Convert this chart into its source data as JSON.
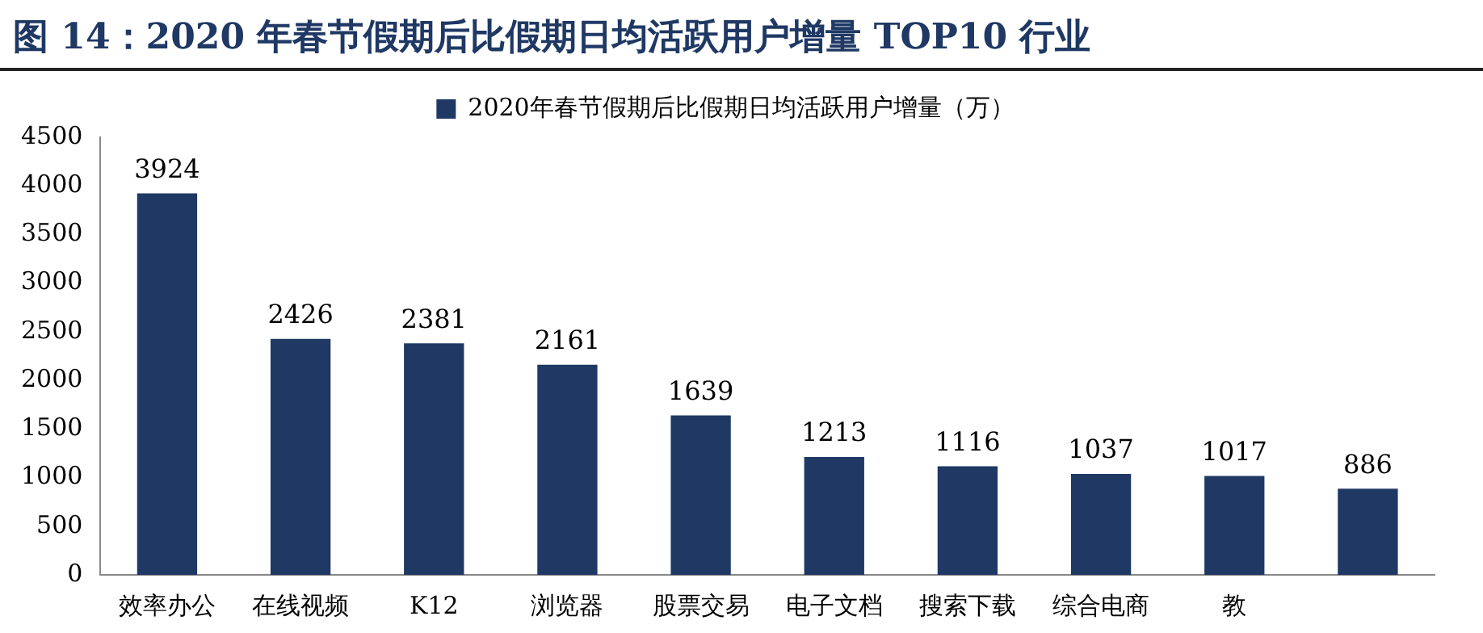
{
  "chart_data": {
    "type": "bar",
    "title": "图 14：2020 年春节假期后比假期日均活跃用户增量 TOP10 行业",
    "categories": [
      "效率办公",
      "在线视频",
      "K12",
      "浏览器",
      "股票交易",
      "电子文档",
      "搜索下载",
      "综合电商",
      "教",
      null
    ],
    "series": [
      {
        "name": "2020年春节假期后比假期日均活跃用户增量（万）",
        "color": "#1f3864",
        "values": [
          3924,
          2426,
          2381,
          2161,
          1639,
          1213,
          1116,
          1037,
          1017,
          886
        ]
      }
    ],
    "ylim": [
      0,
      4500
    ],
    "yticks": [
      0,
      500,
      1000,
      1500,
      2000,
      2500,
      3000,
      3500,
      4000,
      4500
    ],
    "grid": false,
    "legend": "top",
    "data_labels": true
  }
}
